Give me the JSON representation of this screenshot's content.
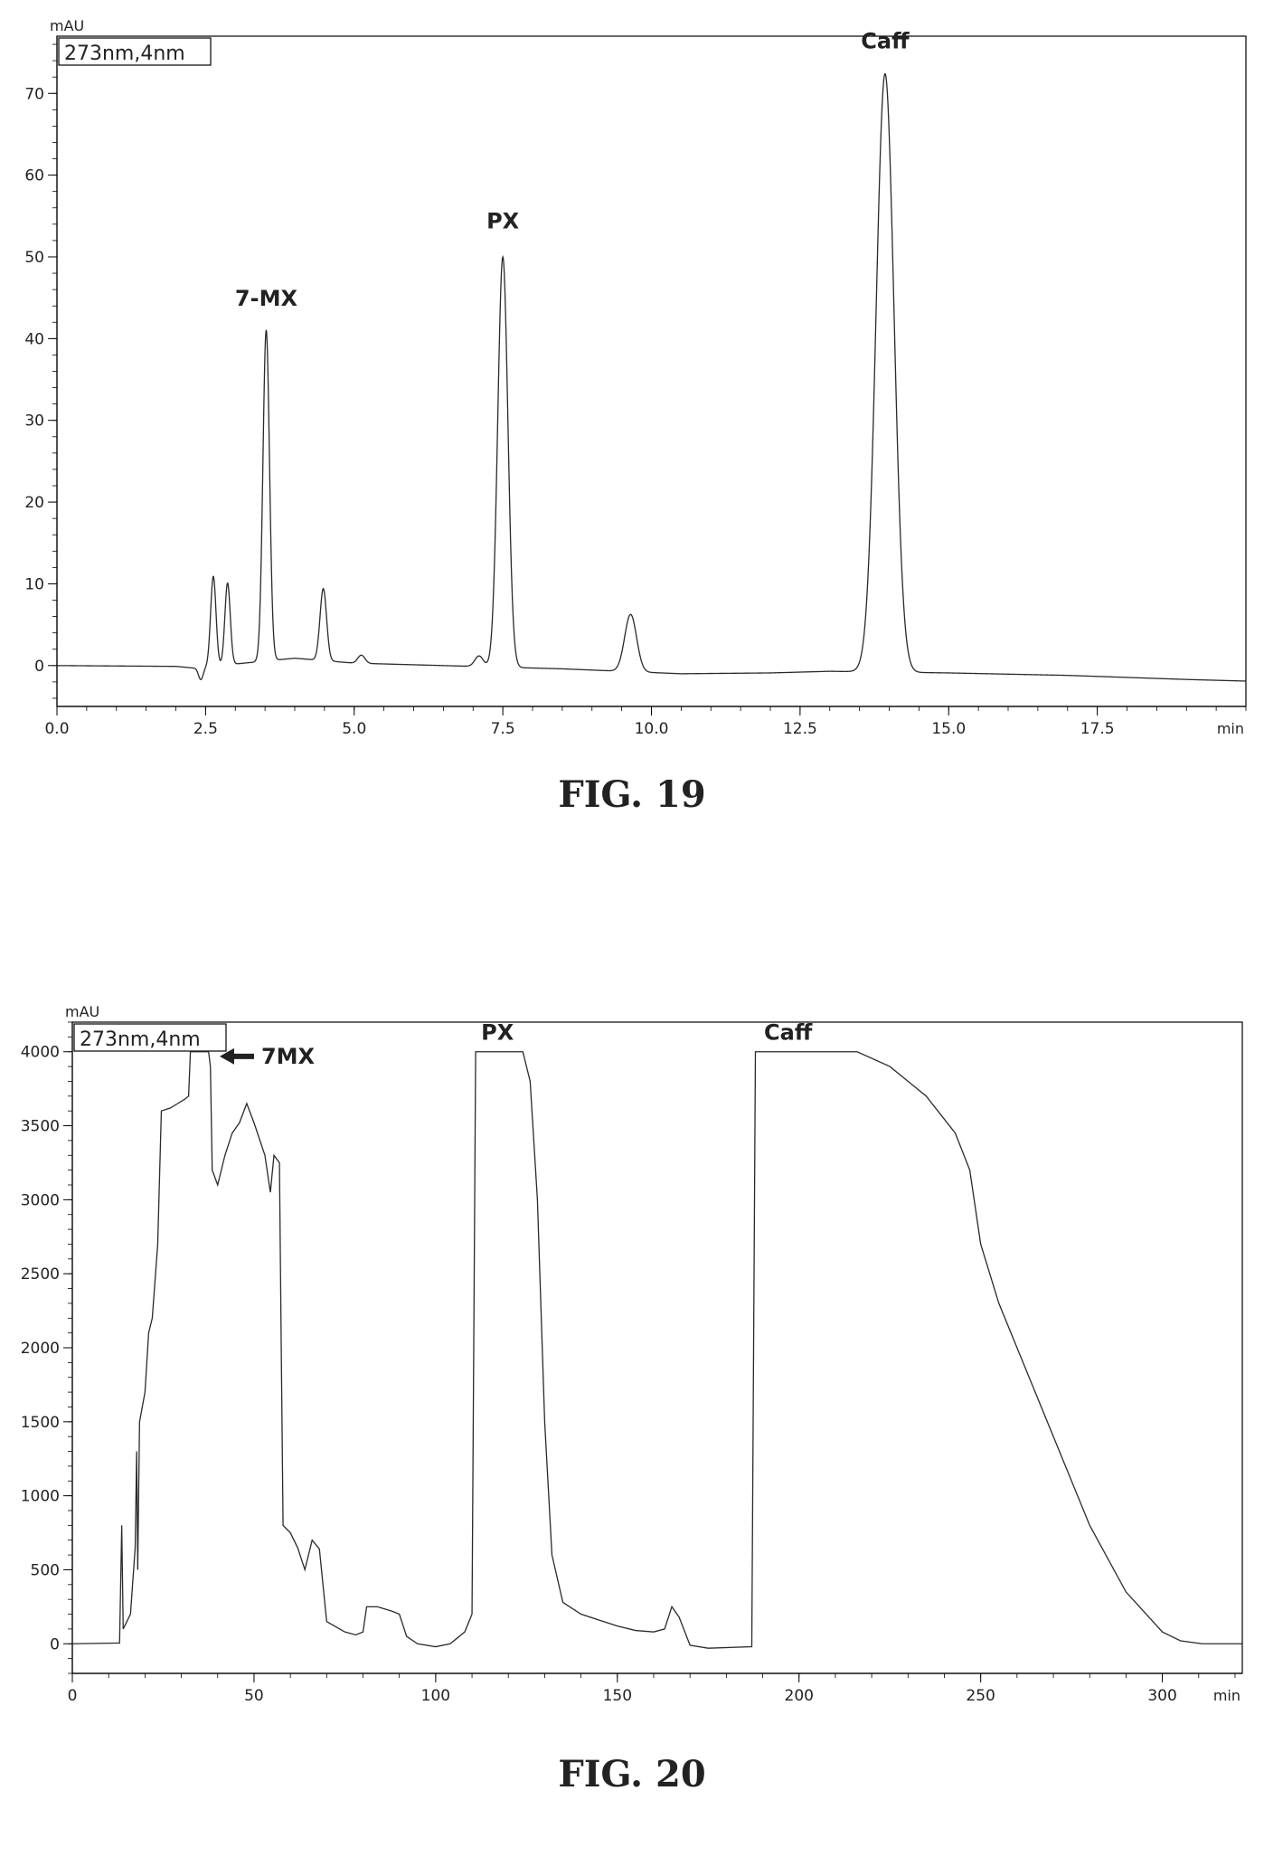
{
  "chart_data": [
    {
      "type": "line",
      "caption": "FIG. 19",
      "ylabel": "mAU",
      "xlabel": "min",
      "wavelength_box": "273nm,4nm",
      "xlim": [
        0,
        20.0
      ],
      "ylim": [
        -5,
        77
      ],
      "xticks": [
        0.0,
        2.5,
        5.0,
        7.5,
        10.0,
        12.5,
        15.0,
        17.5
      ],
      "xtick_labels": [
        "0.0",
        "2.5",
        "5.0",
        "7.5",
        "10.0",
        "12.5",
        "15.0",
        "17.5"
      ],
      "yticks": [
        0,
        10,
        20,
        30,
        40,
        50,
        60,
        70
      ],
      "ytick_labels": [
        "0",
        "10",
        "20",
        "30",
        "40",
        "50",
        "60",
        "70"
      ],
      "baseline": [
        [
          0,
          0
        ],
        [
          2.0,
          -0.1
        ],
        [
          2.3,
          -0.3
        ],
        [
          4.0,
          0.9
        ],
        [
          5.0,
          0.3
        ],
        [
          6.5,
          0
        ],
        [
          8.5,
          -0.4
        ],
        [
          10.5,
          -1.0
        ],
        [
          12.0,
          -0.9
        ],
        [
          13.0,
          -0.7
        ],
        [
          15.0,
          -0.9
        ],
        [
          17.0,
          -1.2
        ],
        [
          19.0,
          -1.7
        ],
        [
          20.0,
          -1.9
        ]
      ],
      "peaks": [
        {
          "t": 2.42,
          "h": -1.5,
          "w": 0.04
        },
        {
          "t": 2.63,
          "h": 11.0,
          "w": 0.045
        },
        {
          "t": 2.87,
          "h": 10.0,
          "w": 0.045
        },
        {
          "t": 3.52,
          "h": 40.5,
          "w": 0.055
        },
        {
          "t": 4.48,
          "h": 8.8,
          "w": 0.055
        },
        {
          "t": 5.12,
          "h": 1.0,
          "w": 0.06
        },
        {
          "t": 7.1,
          "h": 1.3,
          "w": 0.07
        },
        {
          "t": 7.5,
          "h": 50.2,
          "w": 0.085
        },
        {
          "t": 9.65,
          "h": 7.0,
          "w": 0.1
        },
        {
          "t": 13.93,
          "h": 73.2,
          "w": 0.15
        }
      ],
      "peak_labels": [
        {
          "text": "7-MX",
          "x": 3.52,
          "y": 44
        },
        {
          "text": "PX",
          "x": 7.5,
          "y": 53.5
        },
        {
          "text": "Caff",
          "x": 13.93,
          "y": 75.5
        }
      ]
    },
    {
      "type": "line",
      "caption": "FIG. 20",
      "ylabel": "mAU",
      "xlabel": "min",
      "wavelength_box": "273nm,4nm",
      "xlim": [
        0,
        322
      ],
      "ylim": [
        -200,
        4200
      ],
      "xticks": [
        0,
        50,
        100,
        150,
        200,
        250,
        300
      ],
      "xtick_labels": [
        "0",
        "50",
        "100",
        "150",
        "200",
        "250",
        "300"
      ],
      "yticks": [
        0,
        500,
        1000,
        1500,
        2000,
        2500,
        3000,
        3500,
        4000
      ],
      "ytick_labels": [
        "0",
        "500",
        "1000",
        "1500",
        "2000",
        "2500",
        "3000",
        "3500",
        "4000"
      ],
      "trace": [
        [
          0,
          0
        ],
        [
          13,
          5
        ],
        [
          13.6,
          800
        ],
        [
          14,
          100
        ],
        [
          16,
          200
        ],
        [
          17.3,
          650
        ],
        [
          17.7,
          1300
        ],
        [
          18,
          500
        ],
        [
          18.5,
          1500
        ],
        [
          20,
          1700
        ],
        [
          21,
          2100
        ],
        [
          22,
          2200
        ],
        [
          23.5,
          2700
        ],
        [
          24.5,
          3600
        ],
        [
          27,
          3620
        ],
        [
          29,
          3650
        ],
        [
          31,
          3680
        ],
        [
          32,
          3700
        ],
        [
          32.5,
          4000
        ],
        [
          37.5,
          4000
        ],
        [
          38,
          3900
        ],
        [
          38.5,
          3200
        ],
        [
          40,
          3100
        ],
        [
          42,
          3300
        ],
        [
          44,
          3450
        ],
        [
          46,
          3520
        ],
        [
          48,
          3650
        ],
        [
          50,
          3520
        ],
        [
          53,
          3300
        ],
        [
          54.5,
          3050
        ],
        [
          55.5,
          3300
        ],
        [
          57,
          3250
        ],
        [
          57.5,
          2000
        ],
        [
          58,
          800
        ],
        [
          60,
          750
        ],
        [
          62,
          650
        ],
        [
          64,
          500
        ],
        [
          66,
          700
        ],
        [
          68,
          640
        ],
        [
          70,
          150
        ],
        [
          75,
          80
        ],
        [
          78,
          60
        ],
        [
          80,
          80
        ],
        [
          81,
          250
        ],
        [
          84,
          250
        ],
        [
          88,
          220
        ],
        [
          90,
          200
        ],
        [
          92,
          50
        ],
        [
          95,
          0
        ],
        [
          100,
          -20
        ],
        [
          104,
          0
        ],
        [
          108,
          80
        ],
        [
          110,
          200
        ],
        [
          111,
          4000
        ],
        [
          124,
          4000
        ],
        [
          126,
          3800
        ],
        [
          128,
          3000
        ],
        [
          130,
          1500
        ],
        [
          132,
          600
        ],
        [
          135,
          280
        ],
        [
          140,
          200
        ],
        [
          145,
          160
        ],
        [
          150,
          120
        ],
        [
          155,
          90
        ],
        [
          160,
          80
        ],
        [
          163,
          100
        ],
        [
          165,
          250
        ],
        [
          167,
          180
        ],
        [
          170,
          -10
        ],
        [
          175,
          -30
        ],
        [
          187,
          -20
        ],
        [
          188,
          4000
        ],
        [
          216,
          4000
        ],
        [
          225,
          3900
        ],
        [
          235,
          3700
        ],
        [
          243,
          3450
        ],
        [
          247,
          3200
        ],
        [
          250,
          2700
        ],
        [
          255,
          2300
        ],
        [
          260,
          2000
        ],
        [
          270,
          1400
        ],
        [
          280,
          800
        ],
        [
          290,
          350
        ],
        [
          300,
          80
        ],
        [
          305,
          20
        ],
        [
          311,
          0
        ],
        [
          322,
          0
        ]
      ],
      "peak_labels": [
        {
          "text": "7MX",
          "x": 52,
          "y": 3920,
          "arrow": true
        },
        {
          "text": "PX",
          "x": 117,
          "y": 4080
        },
        {
          "text": "Caff",
          "x": 197,
          "y": 4080
        }
      ]
    }
  ]
}
